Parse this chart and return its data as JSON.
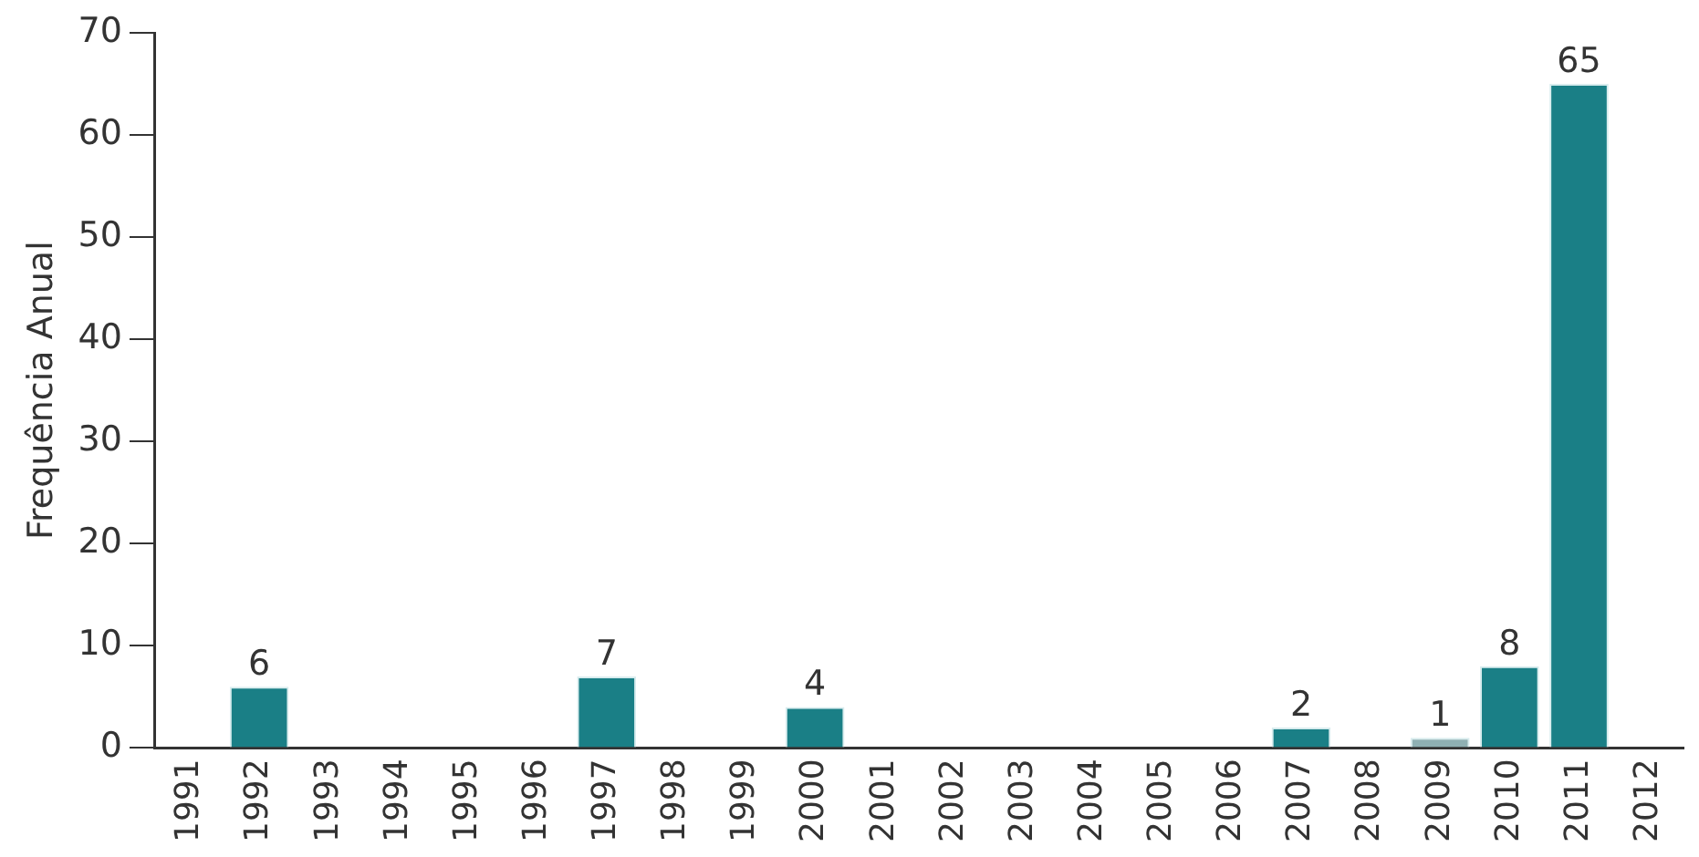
{
  "chart_data": {
    "type": "bar",
    "ylabel": "Frequência Anual",
    "categories": [
      "1991",
      "1992",
      "1993",
      "1994",
      "1995",
      "1996",
      "1997",
      "1998",
      "1999",
      "2000",
      "2001",
      "2002",
      "2003",
      "2004",
      "2005",
      "2006",
      "2007",
      "2008",
      "2009",
      "2010",
      "2011",
      "2012"
    ],
    "values": [
      null,
      6,
      null,
      null,
      null,
      null,
      7,
      null,
      null,
      4,
      null,
      null,
      null,
      null,
      null,
      null,
      2,
      null,
      1,
      8,
      65,
      null
    ],
    "colors": [
      "#1a7f86",
      "#1a7f86",
      "#1a7f86",
      "#1a7f86",
      "#1a7f86",
      "#1a7f86",
      "#1a7f86",
      "#1a7f86",
      "#1a7f86",
      "#1a7f86",
      "#1a7f86",
      "#1a7f86",
      "#1a7f86",
      "#1a7f86",
      "#1a7f86",
      "#1a7f86",
      "#1a7f86",
      "#1a7f86",
      "#8fb0b3",
      "#1a7f86",
      "#1a7f86",
      "#1a7f86"
    ],
    "ylim": [
      0,
      70
    ],
    "yticks": [
      0,
      10,
      20,
      30,
      40,
      50,
      60,
      70
    ],
    "grid": false,
    "legend": false,
    "data_labels": true
  }
}
